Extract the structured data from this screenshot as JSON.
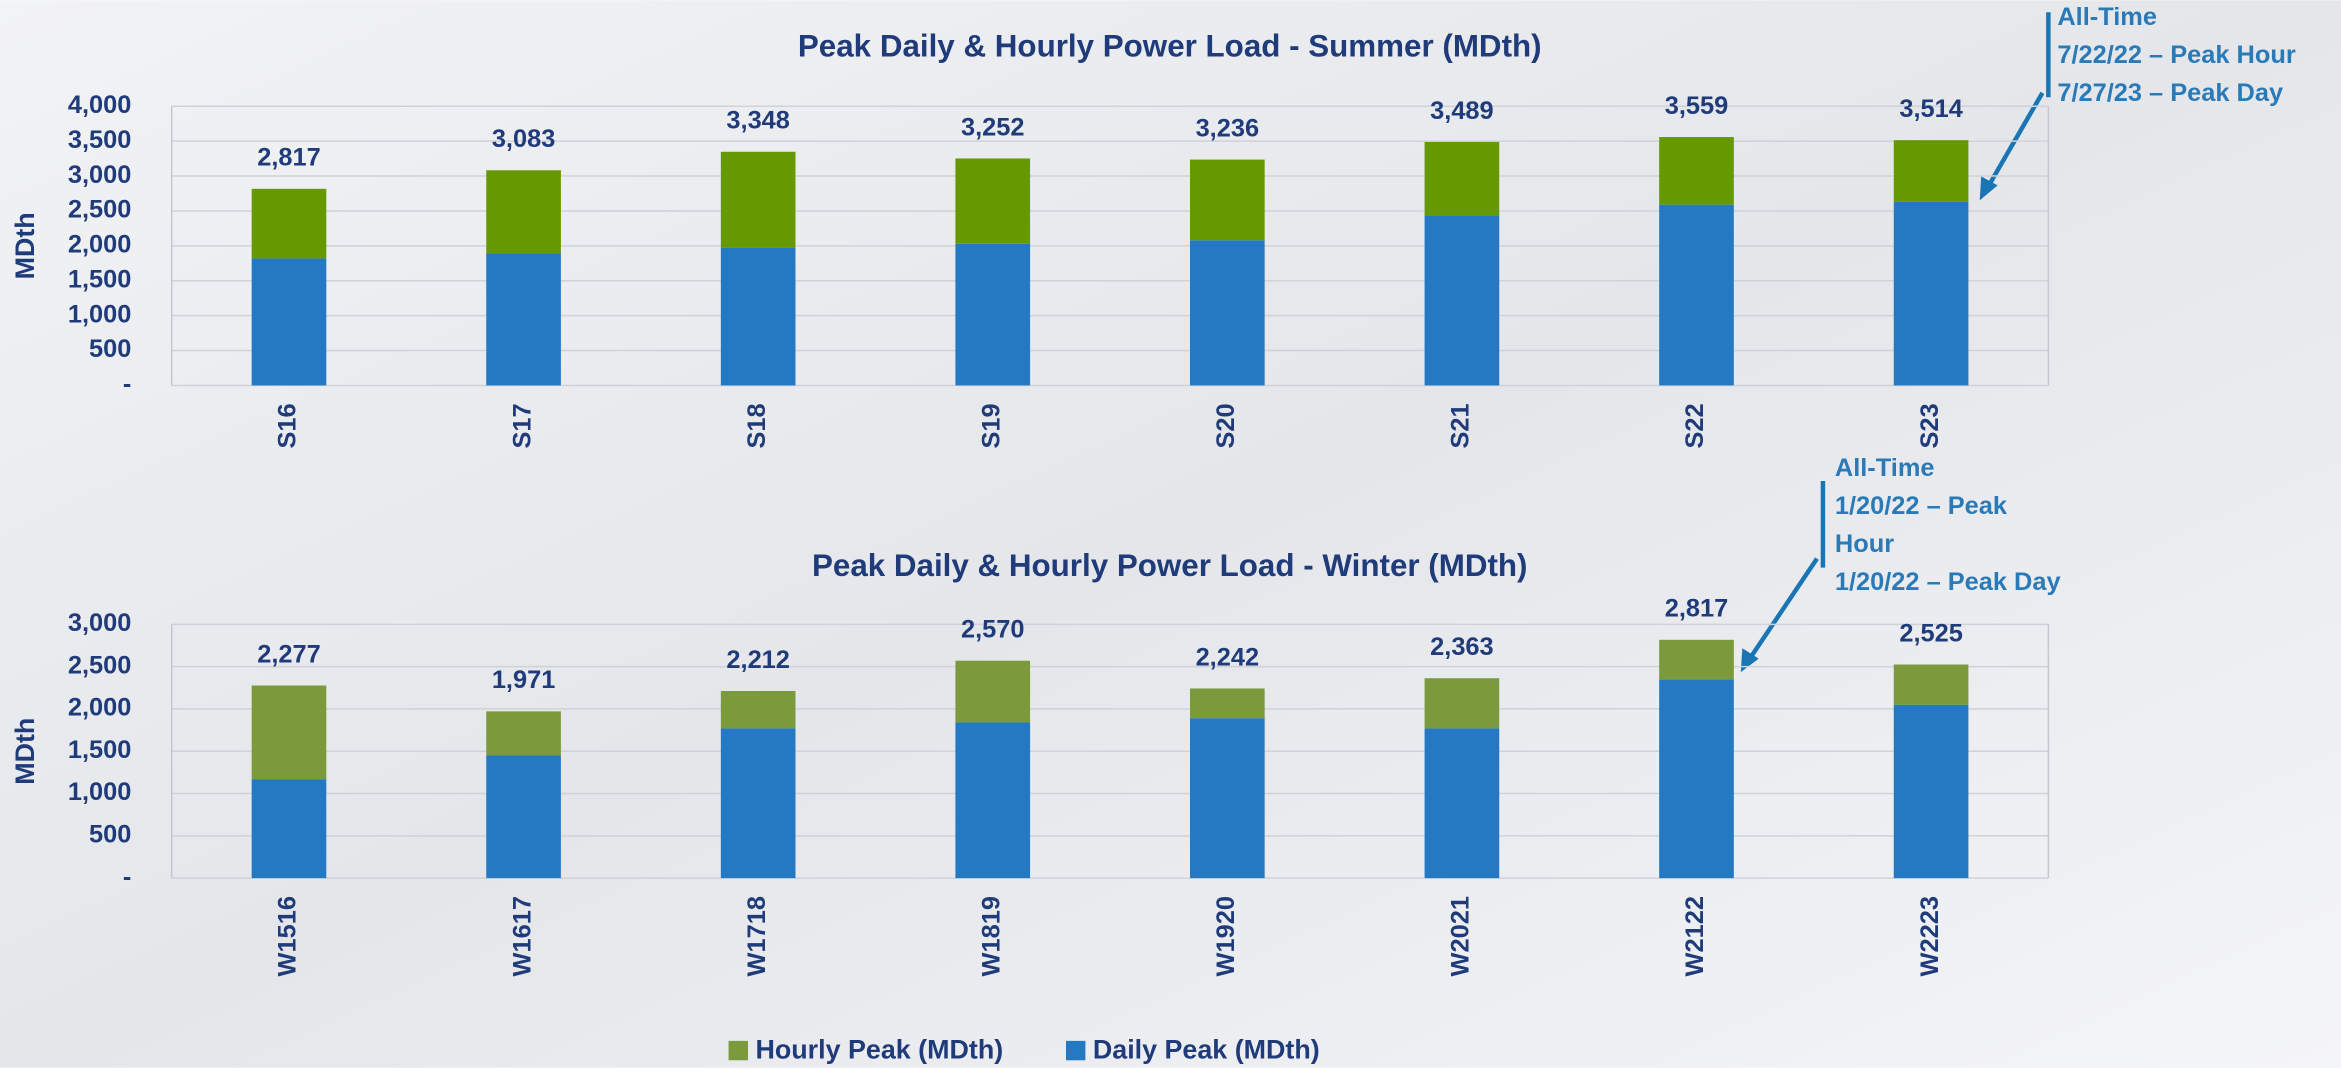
{
  "chart_data": [
    {
      "type": "stacked_bar",
      "title": "Peak Daily & Hourly Power Load - Summer (MDth)",
      "y_label": "MDth",
      "categories": [
        "S16",
        "S17",
        "S18",
        "S19",
        "S20",
        "S21",
        "S22",
        "S23"
      ],
      "series": [
        {
          "name": "Daily Peak (MDth)",
          "color": "#2579c3",
          "values": [
            1820,
            1890,
            1970,
            2030,
            2080,
            2440,
            2590,
            2630
          ]
        },
        {
          "name": "Hourly Peak (MDth)",
          "color": "#669900",
          "values": [
            997,
            1193,
            1378,
            1222,
            1156,
            1049,
            969,
            884
          ]
        }
      ],
      "totals": [
        2817,
        3083,
        3348,
        3252,
        3236,
        3489,
        3559,
        3514
      ],
      "total_labels": [
        "2,817",
        "3,083",
        "3,348",
        "3,252",
        "3,236",
        "3,489",
        "3,559",
        "3,514"
      ],
      "ylim": [
        0,
        4000
      ],
      "yticks": [
        {
          "value": 0,
          "label": "-"
        },
        {
          "value": 500,
          "label": "500"
        },
        {
          "value": 1000,
          "label": "1,000"
        },
        {
          "value": 1500,
          "label": "1,500"
        },
        {
          "value": 2000,
          "label": "2,000"
        },
        {
          "value": 2500,
          "label": "2,500"
        },
        {
          "value": 3000,
          "label": "3,000"
        },
        {
          "value": 3500,
          "label": "3,500"
        },
        {
          "value": 4000,
          "label": "4,000"
        }
      ],
      "grid": true,
      "annotation": [
        "All-Time",
        "7/22/22 – Peak Hour",
        "7/27/23 – Peak Day"
      ]
    },
    {
      "type": "stacked_bar",
      "title": "Peak Daily & Hourly Power Load - Winter (MDth)",
      "y_label": "MDth",
      "categories": [
        "W1516",
        "W1617",
        "W1718",
        "W1819",
        "W1920",
        "W2021",
        "W2122",
        "W2223"
      ],
      "series": [
        {
          "color": "#2579c3",
          "values": [
            1170,
            1450,
            1770,
            1840,
            1890,
            1770,
            2350,
            2050
          ]
        },
        {
          "color": "#7a9a3c",
          "values": [
            1107,
            521,
            442,
            730,
            352,
            593,
            467,
            475
          ]
        }
      ],
      "totals": [
        2277,
        1971,
        2212,
        2570,
        2242,
        2363,
        2817,
        2525
      ],
      "total_labels": [
        "2,277",
        "1,971",
        "2,212",
        "2,570",
        "2,242",
        "2,363",
        "2,817",
        "2,525"
      ],
      "ylim": [
        0,
        3000
      ],
      "yticks": [
        {
          "value": 0,
          "label": "-"
        },
        {
          "value": 500,
          "label": "500"
        },
        {
          "value": 1000,
          "label": "1,000"
        },
        {
          "value": 1500,
          "label": "1,500"
        },
        {
          "value": 2000,
          "label": "2,000"
        },
        {
          "value": 2500,
          "label": "2,500"
        },
        {
          "value": 3000,
          "label": "3,000"
        }
      ],
      "grid": true,
      "annotation": [
        "All-Time",
        "1/20/22 – Peak",
        "Hour",
        "1/20/22 – Peak Day"
      ]
    }
  ]
}
